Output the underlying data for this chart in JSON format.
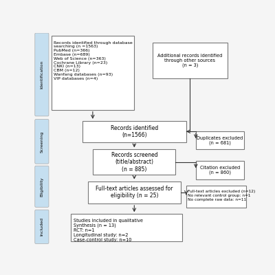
{
  "background_color": "#f5f5f5",
  "phase_labels": [
    "Identification",
    "Screening",
    "Eligibility",
    "Included"
  ],
  "phase_color": "#c5dff0",
  "phase_edge_color": "#aaaaaa",
  "box_edge_color": "#777777",
  "box_fill": "#ffffff",
  "arrow_color": "#333333",
  "box1_text": "Records identified through database\nsearching (n =1563)\nPubMed (n=366)\nEmbase (n=689)\nWeb of Science (n=363)\nCochrane Library (n=23)\nCNKI (n=13)\nCBM (n=12)\nWanfang databases (n=93)\nVIP databases (n=4)",
  "box2_text": "Additional records identified\nthrough other sources\n(n = 3)",
  "box3_text": "Records identified\n(n=1566)",
  "box4_text": "Records screened\n(title/abstract)\n(n = 885)",
  "box5_text": "Full-text articles assessed for\neligibility (n = 25)",
  "box6_text": "Studies included in qualitative\nSynthesis (n = 13)\nRCT: n=1\nLongitudinal study: n=2\nCase-control study: n=10",
  "dup_text": "Duplicates excluded\n(n = 681)",
  "cit_text": "Citation excluded\n(n = 860)",
  "ft_text": "Full-text articles excluded (n=12)\nNo relevant control group: n=1\nNo complete raw data: n=11"
}
